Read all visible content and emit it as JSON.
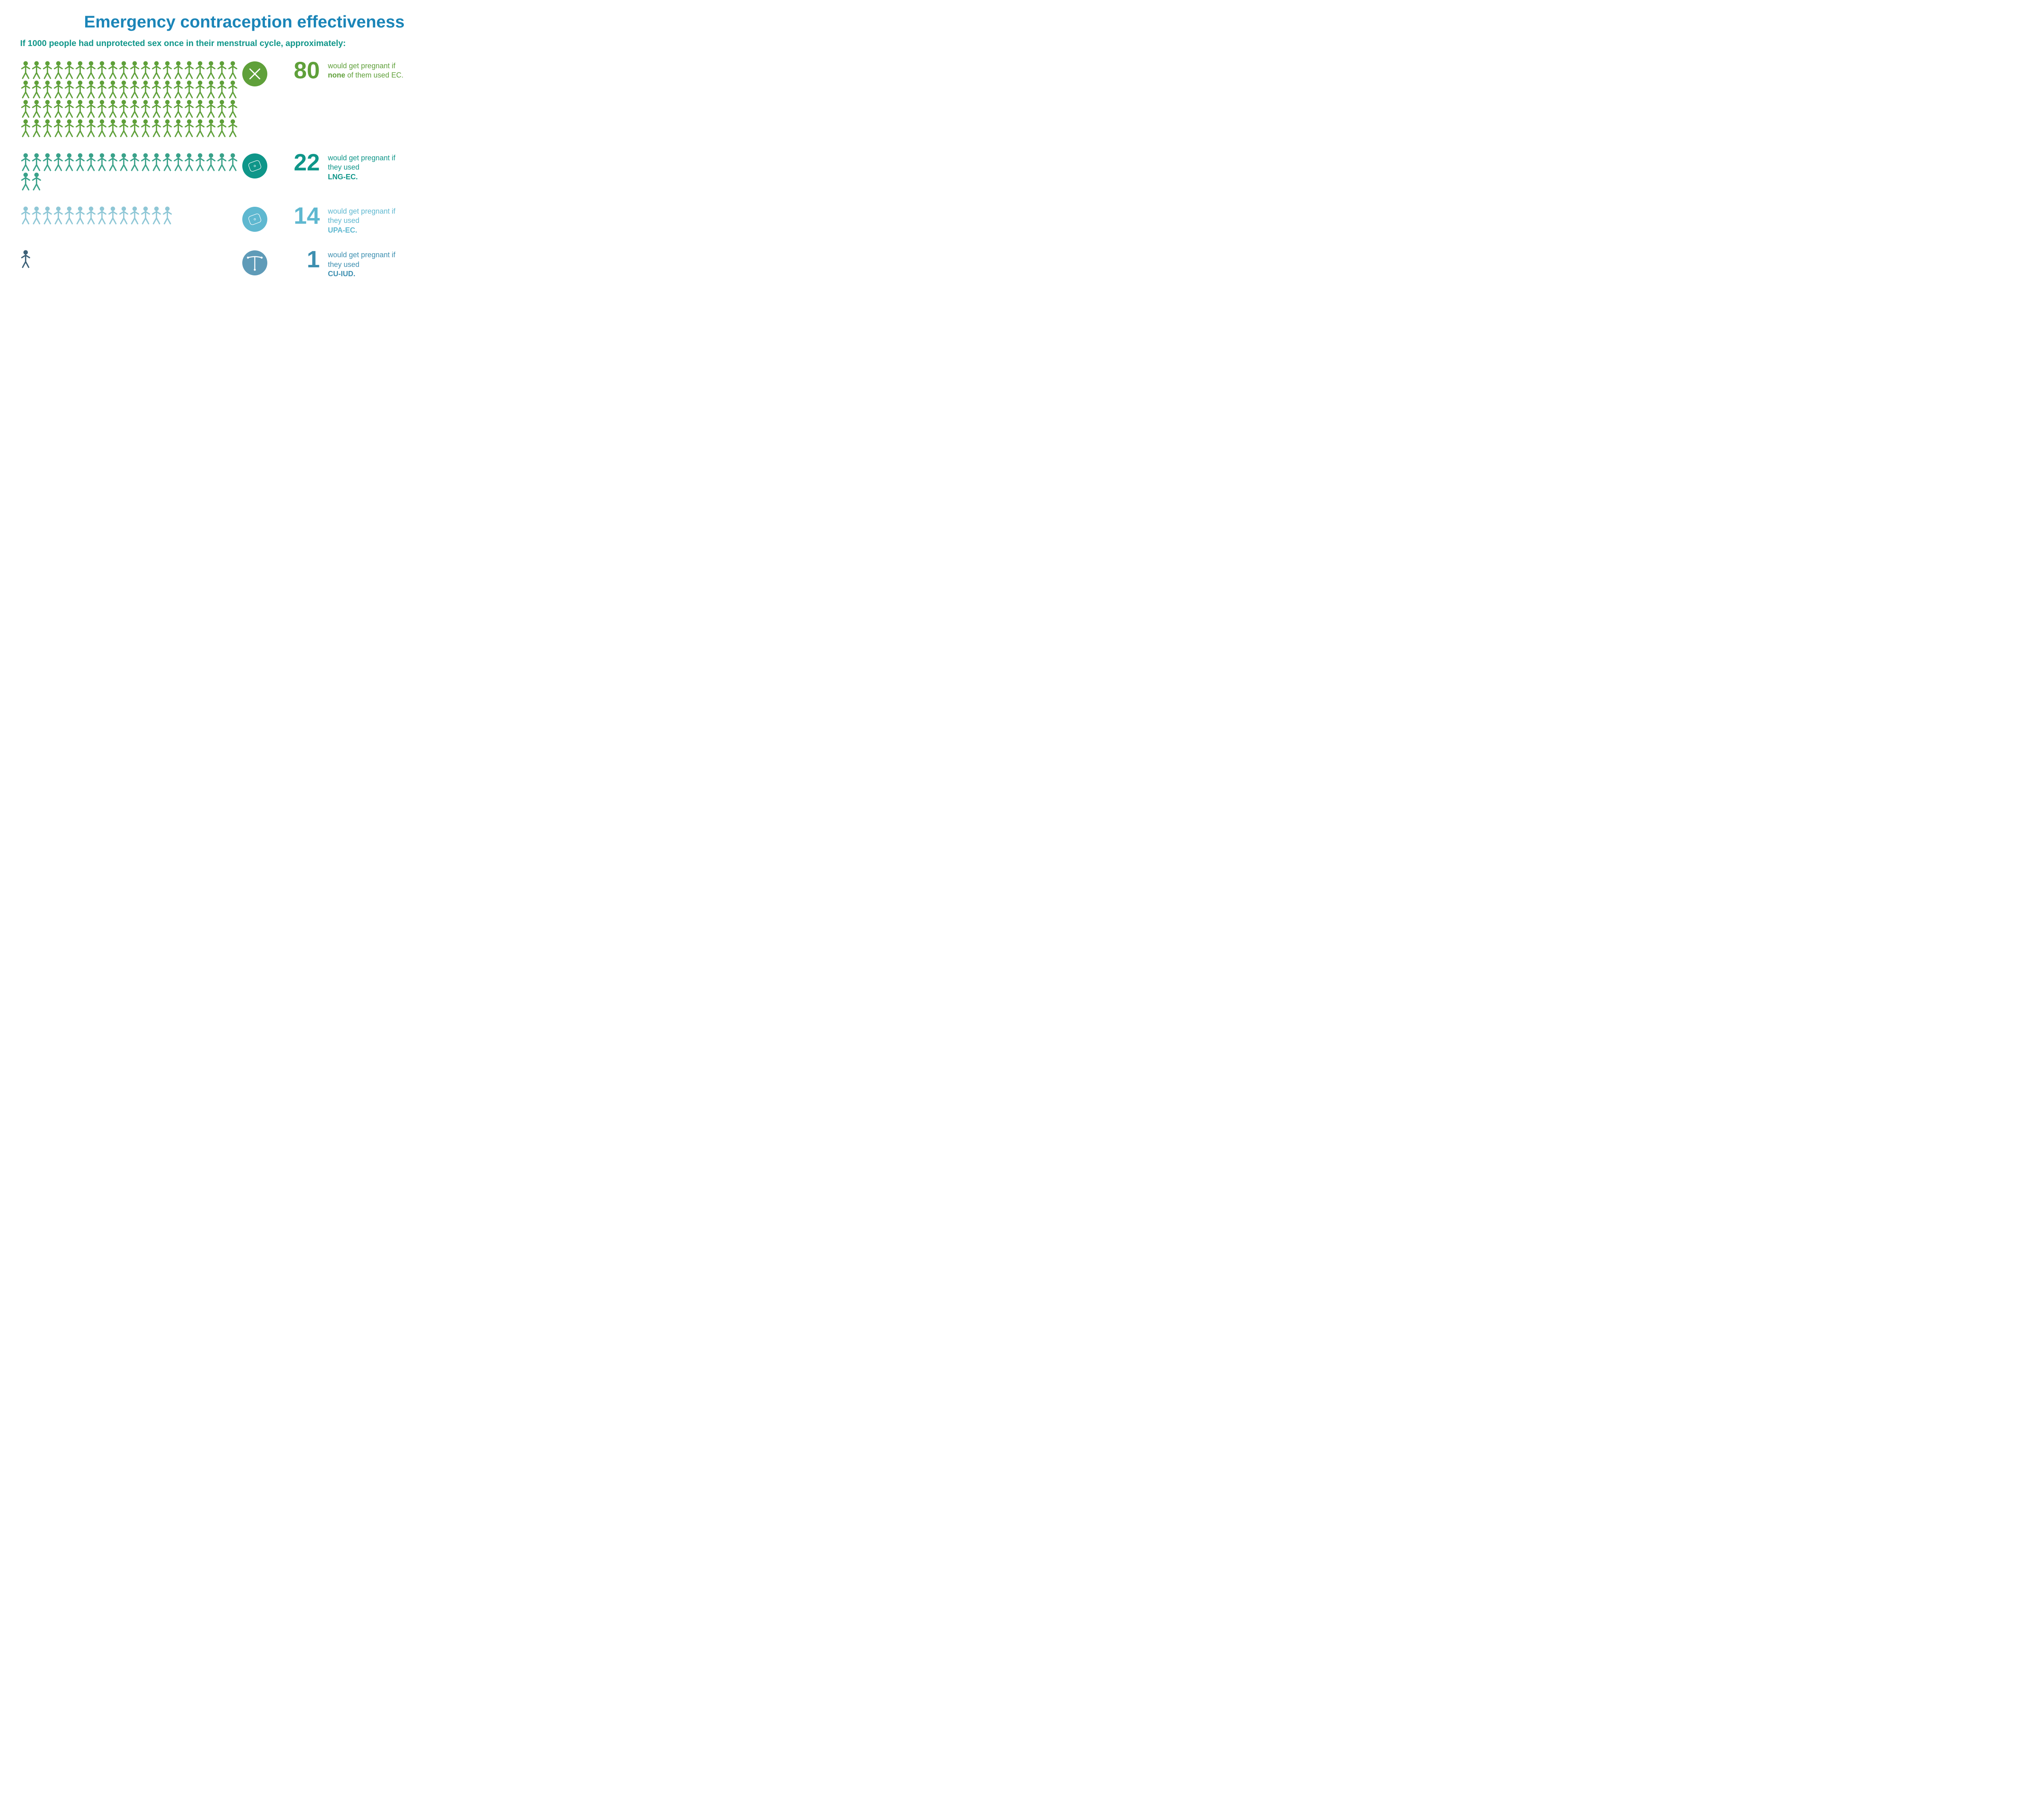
{
  "title": "Emergency contraception effectiveness",
  "subtitle": "If 1000 people had unprotected sex once in their menstrual cycle, approximately:",
  "colors": {
    "title": "#1b85b8",
    "subtitle": "#0f9689"
  },
  "rows": [
    {
      "id": "none",
      "count": 80,
      "color": "#5fa03a",
      "numberColor": "#5fa03a",
      "circleColor": "#5fa03a",
      "descColor": "#5fa03a",
      "icon": "cross",
      "desc_line1": "would get pregnant if",
      "desc_bold": "none",
      "desc_line2": " of them used EC."
    },
    {
      "id": "lng",
      "count": 22,
      "color": "#3aa28a",
      "numberColor": "#0f9689",
      "circleColor": "#0f9689",
      "descColor": "#0f9689",
      "icon": "pill",
      "desc_line1": "would get pregnant if they used",
      "desc_bold": "LNG-EC.",
      "desc_line2": ""
    },
    {
      "id": "upa",
      "count": 14,
      "color": "#8fc7d6",
      "numberColor": "#5fb8d0",
      "circleColor": "#5fb8d0",
      "descColor": "#5fb8d0",
      "icon": "pill",
      "desc_line1": "would get pregnant if they used",
      "desc_bold": "UPA-EC.",
      "desc_line2": ""
    },
    {
      "id": "iud",
      "count": 1,
      "color": "#3d6178",
      "numberColor": "#3d8fb0",
      "circleColor": "#5f9bb8",
      "descColor": "#3d8fb0",
      "icon": "iud",
      "desc_line1": "would get pregnant if they used",
      "desc_bold": "CU-IUD.",
      "desc_line2": ""
    }
  ]
}
